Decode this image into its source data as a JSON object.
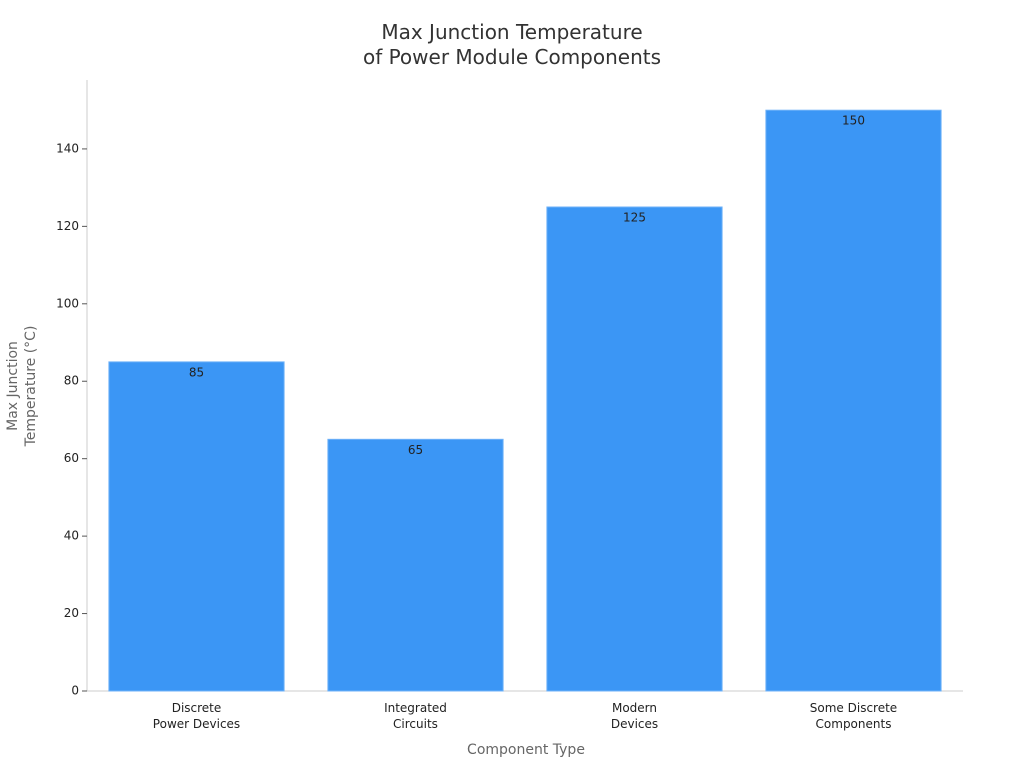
{
  "chart_data": {
    "type": "bar",
    "title": [
      "Max Junction Temperature",
      "of Power Module Components"
    ],
    "x_label": "Component Type",
    "y_label": [
      "Max Junction",
      "Temperature (°C)"
    ],
    "categories": [
      [
        "Discrete",
        "Power Devices"
      ],
      [
        "Integrated",
        "Circuits"
      ],
      [
        "Modern",
        "Devices"
      ],
      [
        "Some Discrete",
        "Components"
      ]
    ],
    "values": [
      85,
      65,
      125,
      150
    ],
    "color": "#3b96f5",
    "ylim": [
      0,
      157.8
    ],
    "yticks": [
      0,
      20,
      40,
      60,
      80,
      100,
      120,
      140
    ],
    "grid": false
  }
}
